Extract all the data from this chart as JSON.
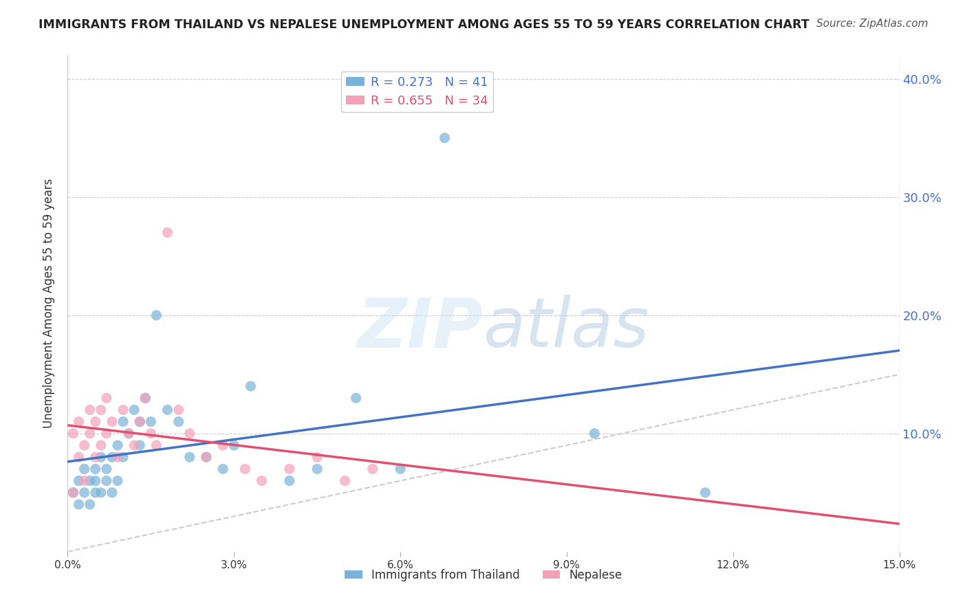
{
  "title": "IMMIGRANTS FROM THAILAND VS NEPALESE UNEMPLOYMENT AMONG AGES 55 TO 59 YEARS CORRELATION CHART",
  "source": "Source: ZipAtlas.com",
  "ylabel": "Unemployment Among Ages 55 to 59 years",
  "xlabel_bottom": "",
  "xlim": [
    0.0,
    0.15
  ],
  "ylim": [
    0.0,
    0.42
  ],
  "yticks": [
    0.1,
    0.2,
    0.3,
    0.4
  ],
  "ytick_labels": [
    "10.0%",
    "20.0%",
    "30.0%",
    "40.0%"
  ],
  "xticks": [
    0.0,
    0.03,
    0.06,
    0.09,
    0.12,
    0.15
  ],
  "xtick_labels": [
    "0.0%",
    "3.0%",
    "6.0%",
    "9.0%",
    "12.0%",
    "15.0%"
  ],
  "legend_entries": [
    {
      "label": "R = 0.273   N = 41",
      "color": "#a8c4e0"
    },
    {
      "label": "R = 0.655   N = 34",
      "color": "#f0a0b0"
    }
  ],
  "legend_labels": [
    "Immigrants from Thailand",
    "Nepalese"
  ],
  "blue_color": "#7ab3d9",
  "pink_color": "#f4a0b8",
  "blue_line_color": "#4472c4",
  "pink_line_color": "#e05070",
  "ref_line_color": "#cccccc",
  "watermark": "ZIPatlas",
  "blue_scatter_x": [
    0.001,
    0.002,
    0.002,
    0.003,
    0.003,
    0.004,
    0.004,
    0.005,
    0.005,
    0.005,
    0.006,
    0.006,
    0.007,
    0.007,
    0.008,
    0.008,
    0.009,
    0.009,
    0.01,
    0.01,
    0.011,
    0.012,
    0.013,
    0.013,
    0.014,
    0.015,
    0.016,
    0.018,
    0.02,
    0.022,
    0.025,
    0.028,
    0.03,
    0.033,
    0.04,
    0.045,
    0.052,
    0.06,
    0.068,
    0.095,
    0.115
  ],
  "blue_scatter_y": [
    0.05,
    0.04,
    0.06,
    0.05,
    0.07,
    0.06,
    0.04,
    0.05,
    0.06,
    0.07,
    0.05,
    0.08,
    0.06,
    0.07,
    0.08,
    0.05,
    0.09,
    0.06,
    0.08,
    0.11,
    0.1,
    0.12,
    0.11,
    0.09,
    0.13,
    0.11,
    0.2,
    0.12,
    0.11,
    0.08,
    0.08,
    0.07,
    0.09,
    0.14,
    0.06,
    0.07,
    0.13,
    0.07,
    0.35,
    0.1,
    0.05
  ],
  "pink_scatter_x": [
    0.001,
    0.001,
    0.002,
    0.002,
    0.003,
    0.003,
    0.004,
    0.004,
    0.005,
    0.005,
    0.006,
    0.006,
    0.007,
    0.007,
    0.008,
    0.009,
    0.01,
    0.011,
    0.012,
    0.013,
    0.014,
    0.015,
    0.016,
    0.018,
    0.02,
    0.022,
    0.025,
    0.028,
    0.032,
    0.035,
    0.04,
    0.045,
    0.05,
    0.055
  ],
  "pink_scatter_y": [
    0.05,
    0.1,
    0.08,
    0.11,
    0.06,
    0.09,
    0.1,
    0.12,
    0.08,
    0.11,
    0.09,
    0.12,
    0.1,
    0.13,
    0.11,
    0.08,
    0.12,
    0.1,
    0.09,
    0.11,
    0.13,
    0.1,
    0.09,
    0.27,
    0.12,
    0.1,
    0.08,
    0.09,
    0.07,
    0.06,
    0.07,
    0.08,
    0.06,
    0.07
  ]
}
